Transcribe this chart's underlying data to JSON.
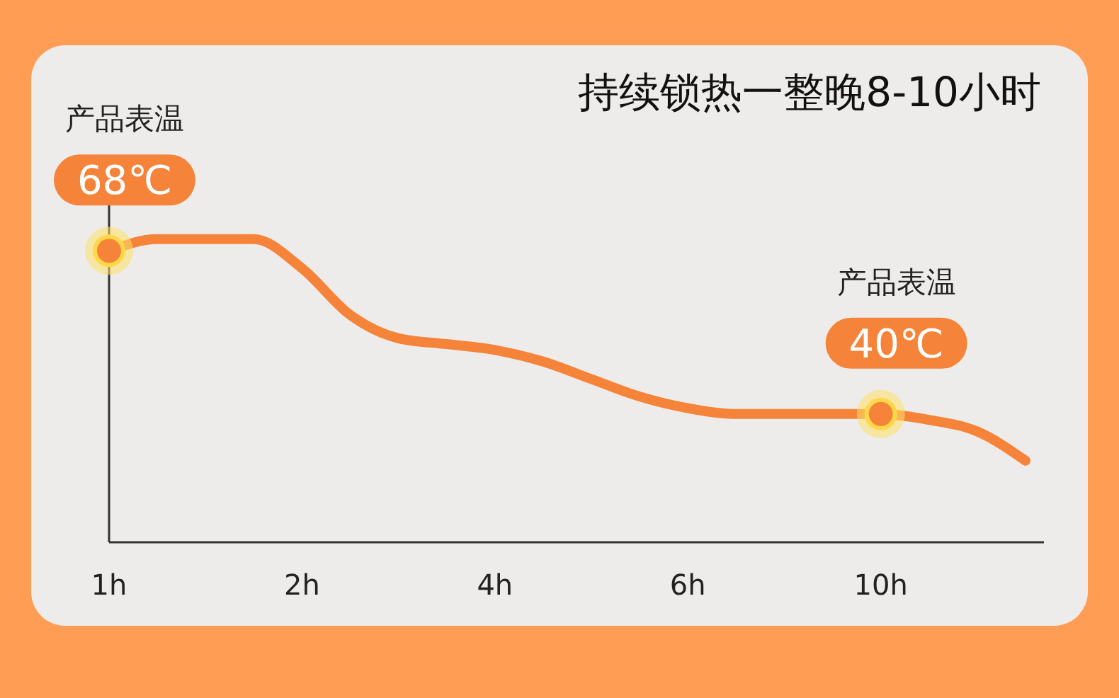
{
  "chart_data": {
    "type": "line",
    "title": "持续锁热一整晚8-10小时",
    "categories": [
      "1h",
      null,
      null,
      null,
      "2h",
      null,
      null,
      null,
      "4h",
      null,
      null,
      null,
      "6h",
      null,
      null,
      null,
      "10h",
      null,
      null,
      null
    ],
    "series": [
      {
        "color": "#f5843a",
        "values": [
          68,
          70,
          70,
          70,
          65,
          57,
          53,
          52,
          51,
          49,
          46,
          43,
          41,
          40,
          40,
          40,
          40,
          39,
          37,
          32
        ],
        "value_labels": [
          "68℃",
          null,
          null,
          null,
          null,
          null,
          null,
          null,
          null,
          null,
          null,
          null,
          null,
          null,
          null,
          null,
          "40℃",
          null,
          null,
          null
        ]
      }
    ],
    "ylim": [
      18,
      78
    ],
    "tick_labels": "x",
    "line_style": "solid",
    "annotations": [
      "产品表温",
      "产品表温"
    ]
  }
}
